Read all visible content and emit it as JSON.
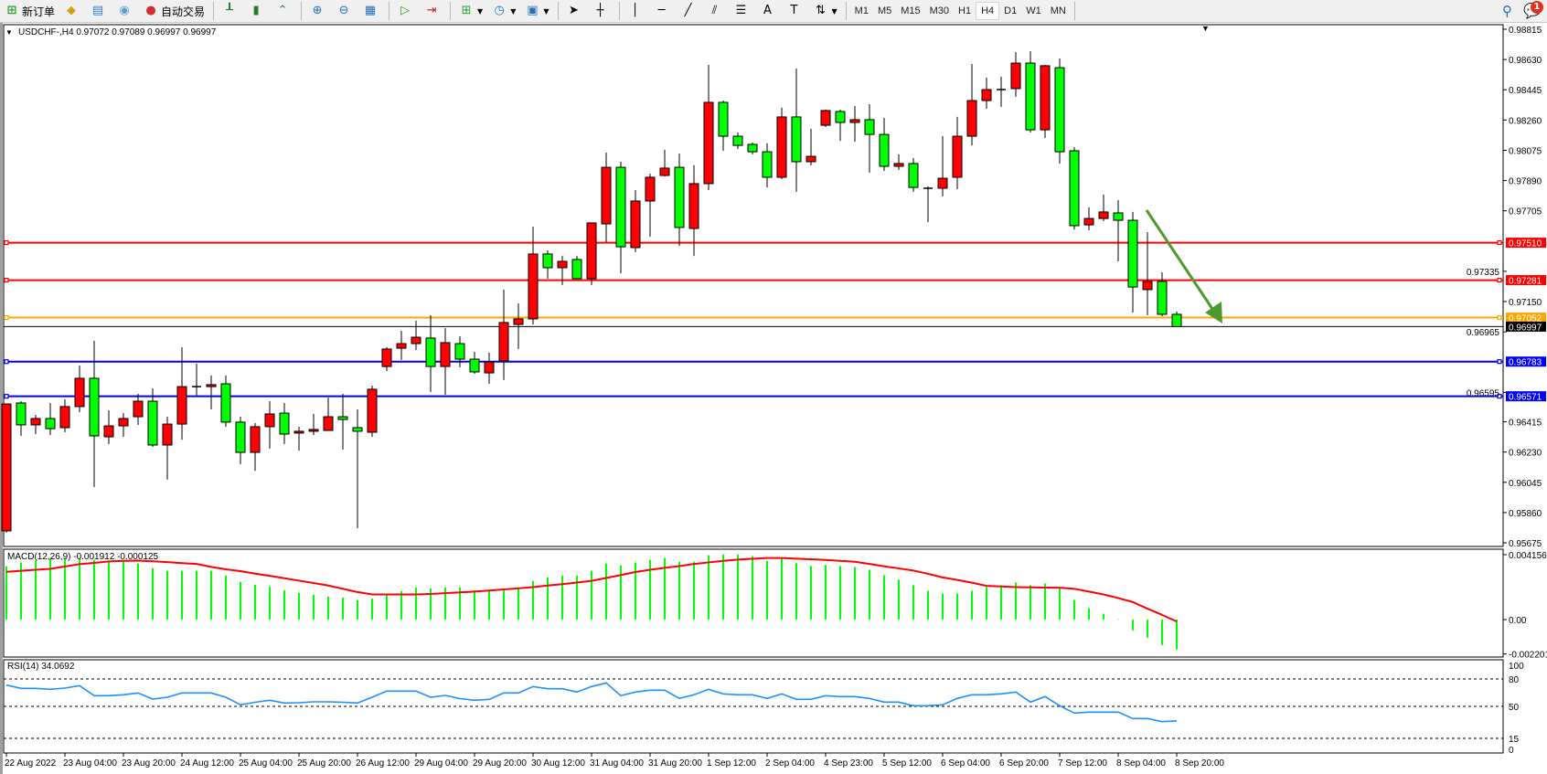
{
  "toolbar": {
    "new_order": "新订单",
    "auto_trading": "自动交易",
    "timeframes": [
      "M1",
      "M5",
      "M15",
      "M30",
      "H1",
      "H4",
      "D1",
      "W1",
      "MN"
    ],
    "active_timeframe": "H4",
    "notification_count": "1",
    "icons": [
      "new-order-icon",
      "gold-icon",
      "terminal-icon",
      "signals-icon",
      "auto-trading-icon",
      "bar-chart-icon",
      "candlestick-icon",
      "line-chart-icon",
      "zoom-in-icon",
      "zoom-out-icon",
      "tile-windows-icon",
      "autoscroll-icon",
      "chart-shift-icon",
      "indicators-icon",
      "periods-icon",
      "templates-icon",
      "cursor-icon",
      "crosshair-icon",
      "vertical-line-icon",
      "horizontal-line-icon",
      "trendline-icon",
      "fibo-channel-icon",
      "fibo-retracement-icon",
      "text-icon",
      "text-label-icon",
      "arrows-icon",
      "search-icon",
      "notification-icon"
    ]
  },
  "main": {
    "header": "USDCHF-,H4  0.97072 0.97089 0.96997 0.96997",
    "price_ticks": [
      "0.98815",
      "0.98630",
      "0.98445",
      "0.98260",
      "0.98075",
      "0.97890",
      "0.97705",
      "0.97335",
      "0.97150",
      "0.96965",
      "0.96595",
      "0.96415",
      "0.96230",
      "0.96045",
      "0.95860",
      "0.95675"
    ],
    "levels": [
      {
        "price": 0.9751,
        "label": "0.97510",
        "color": "#ff0000"
      },
      {
        "price": 0.97281,
        "label": "0.97281",
        "color": "#ff0000"
      },
      {
        "price": 0.97052,
        "label": "0.97052",
        "color": "#ffa500"
      },
      {
        "price": 0.96783,
        "label": "0.96783",
        "color": "#0000ff"
      },
      {
        "price": 0.96571,
        "label": "0.96571",
        "color": "#0000ff"
      }
    ],
    "bid": {
      "price": 0.96997,
      "label": "0.96997"
    },
    "arrow_color": "#4f9a2f",
    "bull_color": "#ff0000",
    "bear_color": "#00ff00"
  },
  "chart_data": [
    {
      "type": "candlestick",
      "title": "USDCHF-,H4",
      "ylim": [
        0.95675,
        0.98815
      ],
      "ohlc": [
        [
          0.95748,
          0.96524,
          0.95737,
          0.96524
        ],
        [
          0.9653,
          0.96541,
          0.96329,
          0.96396
        ],
        [
          0.96396,
          0.96457,
          0.9634,
          0.96435
        ],
        [
          0.96435,
          0.9653,
          0.96334,
          0.96373
        ],
        [
          0.96379,
          0.96552,
          0.96351,
          0.96508
        ],
        [
          0.96508,
          0.96759,
          0.96474,
          0.96681
        ],
        [
          0.96681,
          0.9691,
          0.96016,
          0.96329
        ],
        [
          0.96323,
          0.96485,
          0.96279,
          0.9639
        ],
        [
          0.9639,
          0.96468,
          0.96323,
          0.96435
        ],
        [
          0.96446,
          0.96586,
          0.96396,
          0.96541
        ],
        [
          0.96541,
          0.96619,
          0.96262,
          0.96273
        ],
        [
          0.96273,
          0.96446,
          0.96061,
          0.96401
        ],
        [
          0.96401,
          0.96871,
          0.96306,
          0.9663
        ],
        [
          0.9663,
          0.9677,
          0.96575,
          0.9663
        ],
        [
          0.9663,
          0.96698,
          0.96491,
          0.96642
        ],
        [
          0.96647,
          0.96698,
          0.96385,
          0.96413
        ],
        [
          0.96413,
          0.96446,
          0.96156,
          0.96228
        ],
        [
          0.96228,
          0.96407,
          0.96116,
          0.96385
        ],
        [
          0.96385,
          0.96541,
          0.96251,
          0.96463
        ],
        [
          0.96468,
          0.9653,
          0.96279,
          0.9634
        ],
        [
          0.96346,
          0.96385,
          0.96239,
          0.96357
        ],
        [
          0.96357,
          0.96463,
          0.96334,
          0.96368
        ],
        [
          0.96362,
          0.96563,
          0.96362,
          0.96446
        ],
        [
          0.96446,
          0.96586,
          0.96245,
          0.96429
        ],
        [
          0.96379,
          0.96491,
          0.95765,
          0.96357
        ],
        [
          0.96351,
          0.96636,
          0.96323,
          0.96614
        ],
        [
          0.96753,
          0.96871,
          0.96725,
          0.9686
        ],
        [
          0.96865,
          0.96971,
          0.96793,
          0.96893
        ],
        [
          0.96893,
          0.97033,
          0.96854,
          0.96932
        ],
        [
          0.96927,
          0.97066,
          0.96597,
          0.96753
        ],
        [
          0.96753,
          0.96988,
          0.9658,
          0.96899
        ],
        [
          0.96893,
          0.96938,
          0.96748,
          0.96798
        ],
        [
          0.96798,
          0.96843,
          0.96709,
          0.9672
        ],
        [
          0.96714,
          0.96837,
          0.96647,
          0.96781
        ],
        [
          0.96787,
          0.97223,
          0.9667,
          0.97022
        ],
        [
          0.9701,
          0.97139,
          0.9686,
          0.97044
        ],
        [
          0.97044,
          0.97608,
          0.9701,
          0.97441
        ],
        [
          0.97441,
          0.97463,
          0.9729,
          0.97357
        ],
        [
          0.97357,
          0.97429,
          0.97251,
          0.97396
        ],
        [
          0.97407,
          0.97429,
          0.9729,
          0.9729
        ],
        [
          0.9729,
          0.97631,
          0.97251,
          0.97631
        ],
        [
          0.97625,
          0.98061,
          0.97513,
          0.97971
        ],
        [
          0.97971,
          0.98005,
          0.97323,
          0.97485
        ],
        [
          0.9748,
          0.97832,
          0.97452,
          0.97765
        ],
        [
          0.97765,
          0.97932,
          0.97547,
          0.9791
        ],
        [
          0.97921,
          0.98078,
          0.97915,
          0.97966
        ],
        [
          0.97971,
          0.98055,
          0.97491,
          0.97603
        ],
        [
          0.97597,
          0.97983,
          0.97429,
          0.97871
        ],
        [
          0.97871,
          0.98597,
          0.97832,
          0.98368
        ],
        [
          0.98368,
          0.98379,
          0.98072,
          0.98161
        ],
        [
          0.98161,
          0.98184,
          0.98083,
          0.98105
        ],
        [
          0.98111,
          0.98122,
          0.9805,
          0.98066
        ],
        [
          0.98066,
          0.98117,
          0.97848,
          0.9791
        ],
        [
          0.9791,
          0.98335,
          0.97899,
          0.98279
        ],
        [
          0.98279,
          0.98575,
          0.97821,
          0.98005
        ],
        [
          0.98005,
          0.98206,
          0.97983,
          0.98038
        ],
        [
          0.98228,
          0.98323,
          0.98217,
          0.98318
        ],
        [
          0.98312,
          0.98323,
          0.98133,
          0.98245
        ],
        [
          0.98245,
          0.98346,
          0.98128,
          0.98262
        ],
        [
          0.98262,
          0.98357,
          0.97938,
          0.98172
        ],
        [
          0.98172,
          0.98273,
          0.97949,
          0.97977
        ],
        [
          0.97977,
          0.9805,
          0.97955,
          0.97994
        ],
        [
          0.97994,
          0.98027,
          0.97821,
          0.97848
        ],
        [
          0.97843,
          0.97854,
          0.97636,
          0.97843
        ],
        [
          0.97843,
          0.98161,
          0.97793,
          0.97904
        ],
        [
          0.9791,
          0.98279,
          0.97837,
          0.98161
        ],
        [
          0.98161,
          0.98603,
          0.98105,
          0.98379
        ],
        [
          0.98379,
          0.98519,
          0.98329,
          0.98446
        ],
        [
          0.98446,
          0.98525,
          0.9834,
          0.98446
        ],
        [
          0.98452,
          0.98675,
          0.98402,
          0.98608
        ],
        [
          0.98608,
          0.98681,
          0.98184,
          0.982
        ],
        [
          0.982,
          0.98597,
          0.9815,
          0.98592
        ],
        [
          0.9858,
          0.98636,
          0.97994,
          0.98066
        ],
        [
          0.98072,
          0.98094,
          0.97591,
          0.97614
        ],
        [
          0.97619,
          0.97726,
          0.97586,
          0.97658
        ],
        [
          0.97658,
          0.97804,
          0.97642,
          0.97698
        ],
        [
          0.97692,
          0.9777,
          0.97396,
          0.97647
        ],
        [
          0.97647,
          0.97698,
          0.97083,
          0.97239
        ],
        [
          0.97223,
          0.97575,
          0.97066,
          0.97273
        ],
        [
          0.97273,
          0.97329,
          0.97061,
          0.97072
        ],
        [
          0.97072,
          0.97089,
          0.96997,
          0.96997
        ]
      ],
      "time_labels": [
        "22 Aug 2022",
        "23 Aug 04:00",
        "23 Aug 20:00",
        "24 Aug 12:00",
        "25 Aug 04:00",
        "25 Aug 20:00",
        "26 Aug 12:00",
        "29 Aug 04:00",
        "29 Aug 20:00",
        "30 Aug 12:00",
        "31 Aug 04:00",
        "31 Aug 20:00",
        "1 Sep 12:00",
        "2 Sep 04:00",
        "4 Sep 23:00",
        "5 Sep 12:00",
        "6 Sep 04:00",
        "6 Sep 20:00",
        "7 Sep 12:00",
        "8 Sep 04:00",
        "8 Sep 20:00"
      ]
    },
    {
      "type": "bar",
      "title": "MACD(12,26,9) -0.001912 -0.000125",
      "ylim": [
        -0.002201,
        0.004156
      ],
      "tick_labels": [
        "0.004156",
        "0.00",
        "-0.002201"
      ],
      "histogram": [
        0.00341,
        0.00365,
        0.00376,
        0.00388,
        0.00388,
        0.00388,
        0.00382,
        0.0037,
        0.00376,
        0.00359,
        0.00329,
        0.00312,
        0.00312,
        0.00312,
        0.00312,
        0.00282,
        0.00241,
        0.00223,
        0.00212,
        0.00188,
        0.00171,
        0.00159,
        0.00147,
        0.00141,
        0.00123,
        0.00135,
        0.00159,
        0.00182,
        0.00206,
        0.002,
        0.00206,
        0.00206,
        0.00188,
        0.00182,
        0.00194,
        0.002,
        0.00247,
        0.0027,
        0.00282,
        0.00282,
        0.00312,
        0.00359,
        0.00347,
        0.00365,
        0.00382,
        0.00394,
        0.0037,
        0.0037,
        0.00412,
        0.00417,
        0.00417,
        0.00406,
        0.00376,
        0.00392,
        0.00361,
        0.00343,
        0.00349,
        0.00343,
        0.00337,
        0.00319,
        0.00284,
        0.00255,
        0.0022,
        0.00184,
        0.00167,
        0.00167,
        0.00184,
        0.00208,
        0.0022,
        0.00237,
        0.0022,
        0.00231,
        0.00202,
        0.00125,
        0.00073,
        0.00037,
        2e-05,
        -0.00069,
        -0.00116,
        -0.00163,
        -0.001912
      ],
      "signal": [
        0.00306,
        0.00312,
        0.00319,
        0.00325,
        0.0034,
        0.00355,
        0.00363,
        0.00372,
        0.00376,
        0.00377,
        0.00373,
        0.00368,
        0.00361,
        0.00356,
        0.00337,
        0.00322,
        0.0031,
        0.00294,
        0.0028,
        0.00265,
        0.00249,
        0.00234,
        0.00218,
        0.00197,
        0.00176,
        0.00161,
        0.00161,
        0.00161,
        0.00161,
        0.00164,
        0.00169,
        0.00174,
        0.00179,
        0.00186,
        0.00193,
        0.002,
        0.00208,
        0.00218,
        0.00227,
        0.00237,
        0.00248,
        0.00266,
        0.00285,
        0.00304,
        0.00319,
        0.00331,
        0.00342,
        0.00356,
        0.00366,
        0.00376,
        0.00384,
        0.00389,
        0.00394,
        0.00394,
        0.0039,
        0.00386,
        0.00382,
        0.00376,
        0.0037,
        0.00356,
        0.00341,
        0.00328,
        0.00314,
        0.00293,
        0.0027,
        0.00254,
        0.00236,
        0.00216,
        0.00212,
        0.00208,
        0.00206,
        0.00205,
        0.00204,
        0.00197,
        0.00179,
        0.00161,
        0.00138,
        0.00112,
        0.0007,
        0.0003,
        -0.000125
      ],
      "histogram_color": "#00ff00",
      "signal_color": "#ff0000"
    },
    {
      "type": "line",
      "title": "RSI(14) 34.0692",
      "ylim": [
        0,
        100
      ],
      "tick_labels": [
        "100",
        "80",
        "50",
        "15",
        "0"
      ],
      "levels": [
        80,
        50,
        15
      ],
      "values": [
        73.3,
        69.7,
        69.7,
        68.7,
        70,
        72.7,
        61.7,
        61.7,
        62.7,
        64.7,
        58,
        60,
        64.7,
        64.7,
        64.7,
        60,
        51.7,
        54.5,
        56.7,
        53.7,
        54,
        55,
        55,
        54.5,
        53.7,
        60,
        66.7,
        66.7,
        66.7,
        60,
        62,
        58.5,
        56.7,
        57.7,
        64.7,
        64.7,
        71.7,
        69.3,
        69.3,
        65.7,
        71.7,
        75.7,
        61.7,
        65.7,
        67.7,
        67.7,
        58.7,
        62.7,
        68.7,
        63.7,
        62.7,
        62.7,
        58.7,
        63.7,
        57.7,
        57.7,
        61.7,
        60.7,
        60.7,
        58.7,
        54.7,
        54.7,
        50.7,
        50.7,
        51.7,
        58.7,
        62.7,
        62.7,
        63.7,
        65.7,
        54.7,
        60.7,
        50.7,
        42.7,
        43.7,
        43.7,
        43.7,
        36.7,
        36.7,
        33.3,
        34.07
      ],
      "color": "#1e90ff"
    }
  ]
}
